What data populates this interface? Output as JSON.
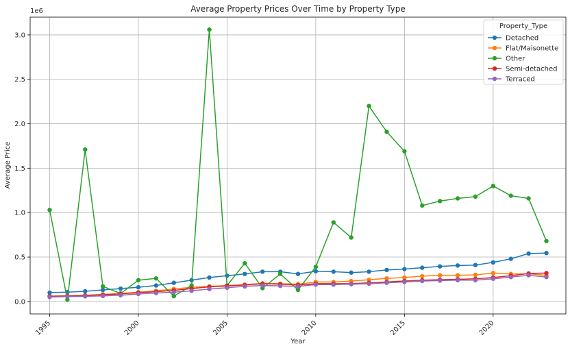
{
  "chart_data": {
    "type": "line",
    "title": "Average Property Prices Over Time by Property Type",
    "xlabel": "Year",
    "ylabel": "Average Price",
    "y_scale_label": "1e6",
    "xlim": [
      1993.9,
      2024.1
    ],
    "ylim": [
      -0.14,
      3.2
    ],
    "x_ticks": [
      1995,
      2000,
      2005,
      2010,
      2015,
      2020
    ],
    "x_tick_labels": [
      "1995",
      "2000",
      "2005",
      "2010",
      "2015",
      "2020"
    ],
    "y_ticks": [
      0.0,
      0.5,
      1.0,
      1.5,
      2.0,
      2.5,
      3.0
    ],
    "y_tick_labels": [
      "0.0",
      "0.5",
      "1.0",
      "1.5",
      "2.0",
      "2.5",
      "3.0"
    ],
    "grid": true,
    "legend": {
      "title": "Property_Type",
      "placement": "top-right"
    },
    "x": [
      1995,
      1996,
      1997,
      1998,
      1999,
      2000,
      2001,
      2002,
      2003,
      2004,
      2005,
      2006,
      2007,
      2008,
      2009,
      2010,
      2011,
      2012,
      2013,
      2014,
      2015,
      2016,
      2017,
      2018,
      2019,
      2020,
      2021,
      2022,
      2023
    ],
    "series": [
      {
        "name": "Detached",
        "color": "#1f77b4",
        "values": [
          0.1,
          0.105,
          0.115,
          0.13,
          0.145,
          0.16,
          0.18,
          0.21,
          0.24,
          0.27,
          0.29,
          0.31,
          0.335,
          0.335,
          0.31,
          0.34,
          0.335,
          0.325,
          0.335,
          0.355,
          0.365,
          0.38,
          0.395,
          0.405,
          0.41,
          0.44,
          0.48,
          0.54,
          0.545
        ]
      },
      {
        "name": "Flat/Maisonette",
        "color": "#ff7f0e",
        "values": [
          0.06,
          0.065,
          0.07,
          0.08,
          0.09,
          0.105,
          0.12,
          0.14,
          0.16,
          0.17,
          0.18,
          0.19,
          0.205,
          0.2,
          0.195,
          0.22,
          0.22,
          0.23,
          0.245,
          0.26,
          0.27,
          0.285,
          0.295,
          0.295,
          0.3,
          0.32,
          0.31,
          0.31,
          0.295
        ]
      },
      {
        "name": "Other",
        "color": "#2ca02c",
        "values": [
          1.03,
          0.02,
          1.71,
          0.17,
          0.09,
          0.24,
          0.26,
          0.06,
          0.18,
          3.06,
          0.18,
          0.43,
          0.15,
          0.31,
          0.13,
          0.39,
          0.89,
          0.72,
          2.2,
          1.91,
          1.69,
          1.08,
          1.13,
          1.16,
          1.18,
          1.3,
          1.19,
          1.16,
          0.68
        ]
      },
      {
        "name": "Semi-detached",
        "color": "#d62728",
        "values": [
          0.06,
          0.062,
          0.068,
          0.075,
          0.085,
          0.1,
          0.11,
          0.125,
          0.145,
          0.165,
          0.175,
          0.185,
          0.2,
          0.195,
          0.185,
          0.2,
          0.2,
          0.2,
          0.21,
          0.22,
          0.23,
          0.24,
          0.245,
          0.25,
          0.255,
          0.27,
          0.29,
          0.315,
          0.32
        ]
      },
      {
        "name": "Terraced",
        "color": "#9467bd",
        "values": [
          0.05,
          0.055,
          0.058,
          0.062,
          0.07,
          0.085,
          0.095,
          0.105,
          0.12,
          0.14,
          0.155,
          0.17,
          0.18,
          0.175,
          0.17,
          0.19,
          0.19,
          0.195,
          0.2,
          0.21,
          0.22,
          0.23,
          0.235,
          0.24,
          0.24,
          0.255,
          0.275,
          0.295,
          0.275
        ]
      }
    ]
  }
}
